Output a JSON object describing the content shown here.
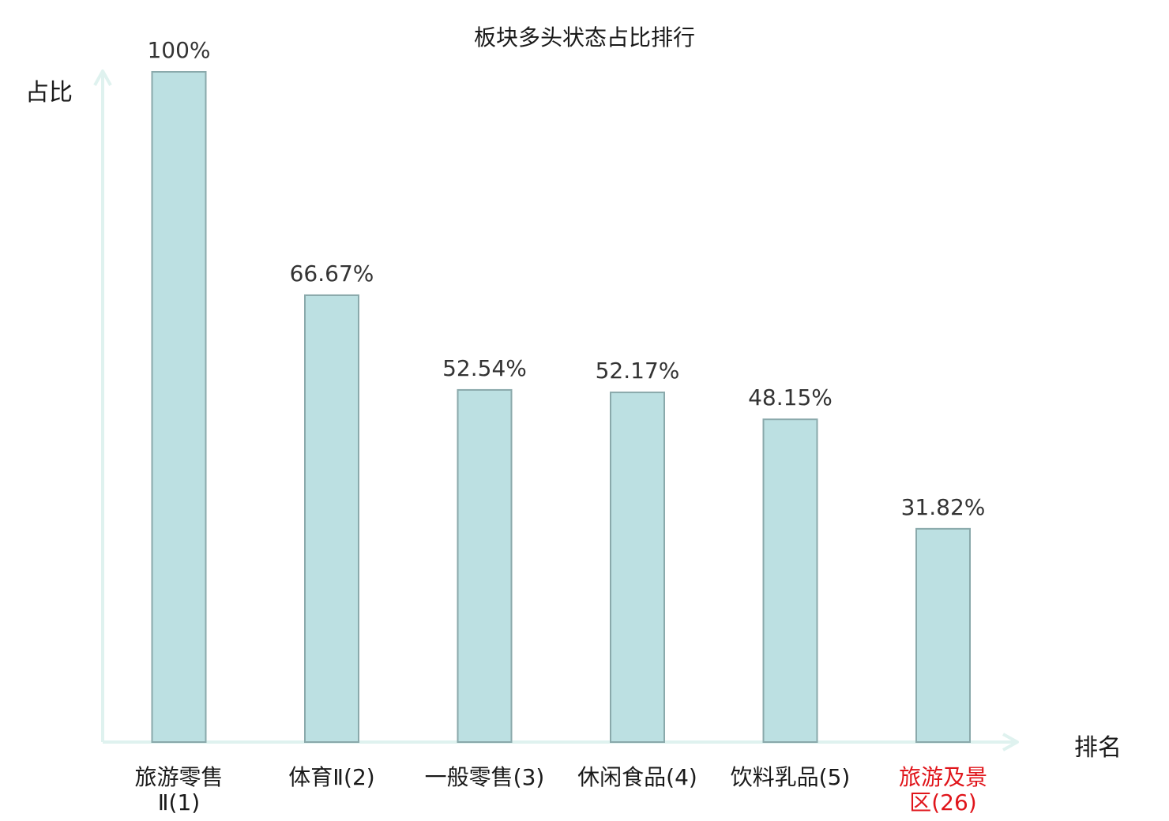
{
  "chart_data": {
    "type": "bar",
    "title": "板块多头状态占比排行",
    "ylabel": "占比",
    "xlabel": "排名",
    "categories": [
      [
        "旅游零售",
        "Ⅱ(1)"
      ],
      [
        "体育Ⅱ(2)"
      ],
      [
        "一般零售(3)"
      ],
      [
        "休闲食品(4)"
      ],
      [
        "饮料乳品(5)"
      ],
      [
        "旅游及景",
        "区(26)"
      ]
    ],
    "values": [
      100,
      66.67,
      52.54,
      52.17,
      48.15,
      31.82
    ],
    "value_labels": [
      "100%",
      "66.67%",
      "52.54%",
      "52.17%",
      "48.15%",
      "31.82%"
    ],
    "highlight_index": 5,
    "ylim": [
      0,
      100
    ],
    "grid": false,
    "legend": "none",
    "colors": {
      "bar_fill": "#bce0e2",
      "bar_stroke": "#8aa9ab",
      "axis": "#dff2ef",
      "label_text": "#333333",
      "category_text": "#1a1a1a",
      "highlight_text": "#e0151b"
    }
  }
}
